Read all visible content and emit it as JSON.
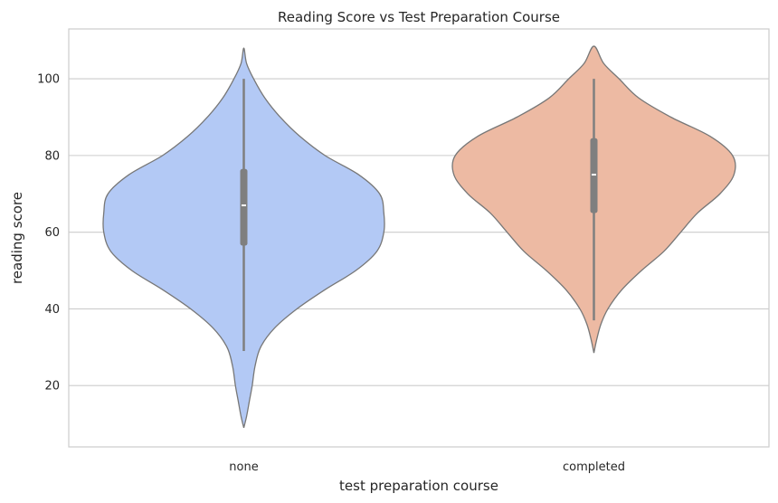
{
  "chart_data": {
    "type": "violin",
    "title": "Reading Score vs Test Preparation Course",
    "xlabel": "test preparation course",
    "ylabel": "reading score",
    "ylim": [
      4,
      113
    ],
    "yticks": [
      20,
      40,
      60,
      80,
      100
    ],
    "grid": "horizontal",
    "categories": [
      "none",
      "completed"
    ],
    "violins": [
      {
        "category": "none",
        "color": "#b3c9f5",
        "min": 9,
        "max": 108,
        "whisker_low": 29,
        "whisker_high": 100,
        "q1": 56.5,
        "median": 67,
        "q3": 76.5,
        "density_profile": [
          [
            9,
            0.0
          ],
          [
            12,
            0.02
          ],
          [
            16,
            0.04
          ],
          [
            20,
            0.06
          ],
          [
            25,
            0.08
          ],
          [
            30,
            0.12
          ],
          [
            35,
            0.22
          ],
          [
            40,
            0.38
          ],
          [
            45,
            0.58
          ],
          [
            50,
            0.8
          ],
          [
            55,
            0.95
          ],
          [
            60,
            1.0
          ],
          [
            65,
            1.0
          ],
          [
            70,
            0.97
          ],
          [
            75,
            0.82
          ],
          [
            80,
            0.58
          ],
          [
            85,
            0.4
          ],
          [
            90,
            0.26
          ],
          [
            95,
            0.15
          ],
          [
            100,
            0.07
          ],
          [
            104,
            0.02
          ],
          [
            108,
            0.0
          ]
        ]
      },
      {
        "category": "completed",
        "color": "#edbaa3",
        "min": 28.5,
        "max": 108.5,
        "whisker_low": 37,
        "whisker_high": 100,
        "q1": 65,
        "median": 75,
        "q3": 84.5,
        "density_profile": [
          [
            28.5,
            0.0
          ],
          [
            32,
            0.02
          ],
          [
            36,
            0.05
          ],
          [
            40,
            0.1
          ],
          [
            45,
            0.2
          ],
          [
            50,
            0.34
          ],
          [
            55,
            0.5
          ],
          [
            60,
            0.62
          ],
          [
            65,
            0.74
          ],
          [
            70,
            0.9
          ],
          [
            75,
            1.0
          ],
          [
            80,
            0.99
          ],
          [
            85,
            0.83
          ],
          [
            90,
            0.55
          ],
          [
            95,
            0.32
          ],
          [
            100,
            0.18
          ],
          [
            104,
            0.07
          ],
          [
            108.5,
            0.0
          ]
        ]
      }
    ]
  }
}
